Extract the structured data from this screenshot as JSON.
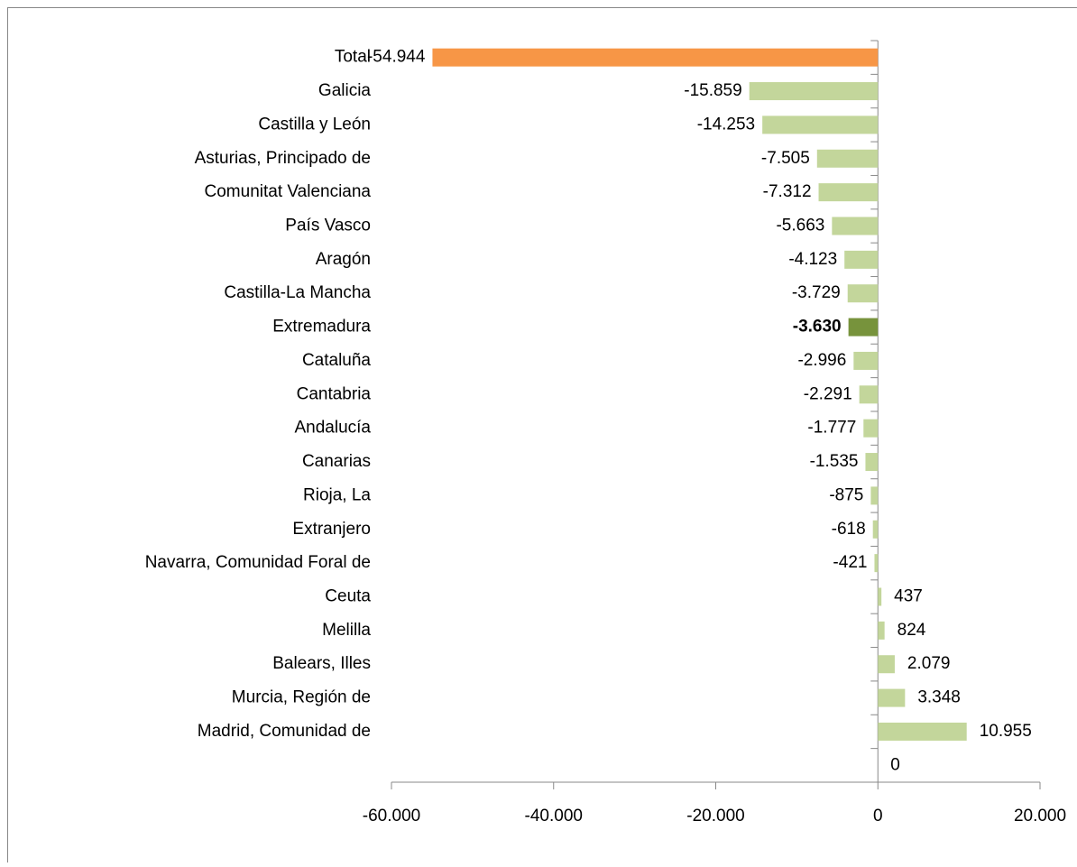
{
  "chart_data": {
    "type": "hbar",
    "categories": [
      "Total",
      "Galicia",
      "Castilla y León",
      "Asturias, Principado de",
      "Comunitat Valenciana",
      "País Vasco",
      "Aragón",
      "Castilla-La Mancha",
      "Extremadura",
      "Cataluña",
      "Cantabria",
      "Andalucía",
      "Canarias",
      "Rioja, La",
      "Extranjero",
      "Navarra, Comunidad Foral de",
      "Ceuta",
      "Melilla",
      "Balears, Illes",
      "Murcia, Región de",
      "Madrid, Comunidad de",
      null
    ],
    "values": [
      -54944,
      -15859,
      -14253,
      -7505,
      -7312,
      -5663,
      -4123,
      -3729,
      -3630,
      -2996,
      -2291,
      -1777,
      -1535,
      -875,
      -618,
      -421,
      437,
      824,
      2079,
      3348,
      10955,
      0
    ],
    "value_labels": [
      "-54.944",
      "-15.859",
      "-14.253",
      "-7.505",
      "-7.312",
      "-5.663",
      "-4.123",
      "-3.729",
      "-3.630",
      "-2.996",
      "-2.291",
      "-1.777",
      "-1.535",
      "-875",
      "-618",
      "-421",
      "437",
      "824",
      "2.079",
      "3.348",
      "10.955",
      "0"
    ],
    "colors": [
      "#f79646",
      "#c3d69b",
      "#c3d69b",
      "#c3d69b",
      "#c3d69b",
      "#c3d69b",
      "#c3d69b",
      "#c3d69b",
      "#77933c",
      "#c3d69b",
      "#c3d69b",
      "#c3d69b",
      "#c3d69b",
      "#c3d69b",
      "#c3d69b",
      "#c3d69b",
      "#c3d69b",
      "#c3d69b",
      "#c3d69b",
      "#c3d69b",
      "#c3d69b",
      "#c3d69b"
    ],
    "bold_value_labels": [
      8
    ],
    "xlim": [
      -60000,
      20000
    ],
    "xticks": [
      {
        "value": -60000,
        "label": "-60.000"
      },
      {
        "value": -40000,
        "label": "-40.000"
      },
      {
        "value": -20000,
        "label": "-20.000"
      },
      0,
      {
        "value": 20000,
        "label": "20.000"
      }
    ]
  }
}
